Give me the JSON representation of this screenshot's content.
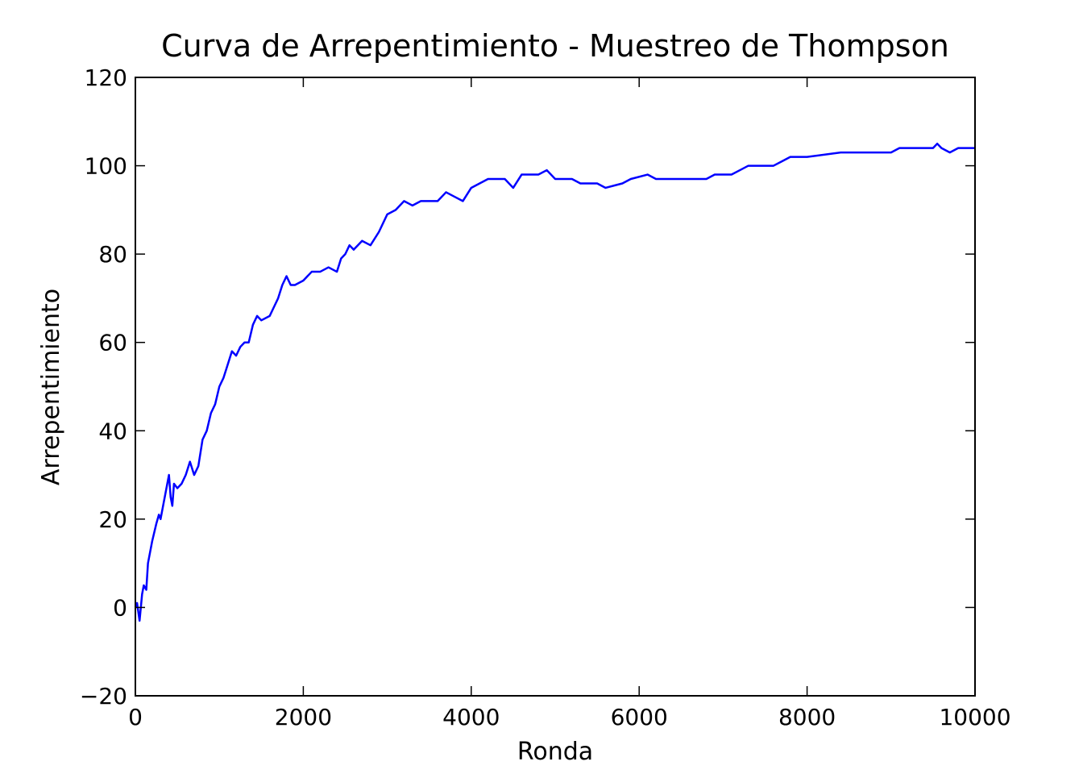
{
  "chart_data": {
    "type": "line",
    "title": "Curva de Arrepentimiento - Muestreo de Thompson",
    "xlabel": "Ronda",
    "ylabel": "Arrepentimiento",
    "color": "#0000ff",
    "xlim": [
      0,
      10000
    ],
    "xticks": [
      0,
      2000,
      4000,
      6000,
      8000,
      10000
    ],
    "ylim": [
      -20,
      120
    ],
    "yticks": [
      {
        "value": -20,
        "label": "−20"
      },
      0,
      20,
      40,
      60,
      80,
      100,
      120
    ],
    "x": [
      0,
      20,
      50,
      80,
      100,
      130,
      150,
      200,
      250,
      280,
      300,
      330,
      360,
      380,
      400,
      420,
      440,
      460,
      500,
      550,
      600,
      650,
      700,
      750,
      800,
      850,
      900,
      950,
      1000,
      1050,
      1100,
      1150,
      1200,
      1250,
      1300,
      1350,
      1400,
      1450,
      1500,
      1600,
      1650,
      1700,
      1750,
      1800,
      1850,
      1900,
      2000,
      2100,
      2200,
      2300,
      2400,
      2450,
      2500,
      2550,
      2600,
      2700,
      2800,
      2900,
      3000,
      3100,
      3200,
      3300,
      3400,
      3600,
      3700,
      3800,
      3900,
      4000,
      4100,
      4200,
      4400,
      4500,
      4600,
      4800,
      4900,
      5000,
      5200,
      5300,
      5500,
      5600,
      5800,
      5900,
      6100,
      6200,
      6500,
      6800,
      6900,
      7100,
      7200,
      7300,
      7600,
      7700,
      7800,
      8000,
      8400,
      9000,
      9100,
      9500,
      9550,
      9600,
      9700,
      9800,
      10000
    ],
    "values": [
      0,
      1,
      -3,
      3,
      5,
      4,
      10,
      15,
      19,
      21,
      20,
      23,
      26,
      28,
      30,
      25,
      23,
      28,
      27,
      28,
      30,
      33,
      30,
      32,
      38,
      40,
      44,
      46,
      50,
      52,
      55,
      58,
      57,
      59,
      60,
      60,
      64,
      66,
      65,
      66,
      68,
      70,
      73,
      75,
      73,
      73,
      74,
      76,
      76,
      77,
      76,
      79,
      80,
      82,
      81,
      83,
      82,
      85,
      89,
      90,
      92,
      91,
      92,
      92,
      94,
      93,
      92,
      95,
      96,
      97,
      97,
      95,
      98,
      98,
      99,
      97,
      97,
      96,
      96,
      95,
      96,
      97,
      98,
      97,
      97,
      97,
      98,
      98,
      99,
      100,
      100,
      101,
      102,
      102,
      103,
      103,
      104,
      104,
      105,
      104,
      103,
      104,
      104
    ]
  }
}
